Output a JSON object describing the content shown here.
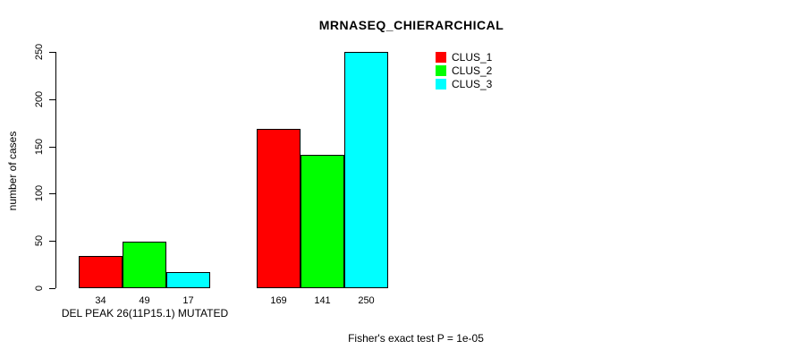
{
  "chart_data": {
    "type": "bar",
    "title": "MRNASEQ_CHIERARCHICAL",
    "ylabel": "number of cases",
    "xlabel": "",
    "ylim": [
      0,
      250
    ],
    "yticks": [
      0,
      50,
      100,
      150,
      200,
      250
    ],
    "grid": false,
    "legend_position": "top-right",
    "series": [
      {
        "name": "CLUS_1",
        "color": "#ff0000"
      },
      {
        "name": "CLUS_2",
        "color": "#00ff00"
      },
      {
        "name": "CLUS_3",
        "color": "#00ffff"
      }
    ],
    "groups": [
      {
        "label": "DEL PEAK 26(11P15.1) MUTATED",
        "values": [
          34,
          49,
          17
        ]
      },
      {
        "label": "",
        "values": [
          169,
          141,
          250
        ]
      }
    ],
    "annotation": "Fisher's exact test P = 1e-05"
  }
}
